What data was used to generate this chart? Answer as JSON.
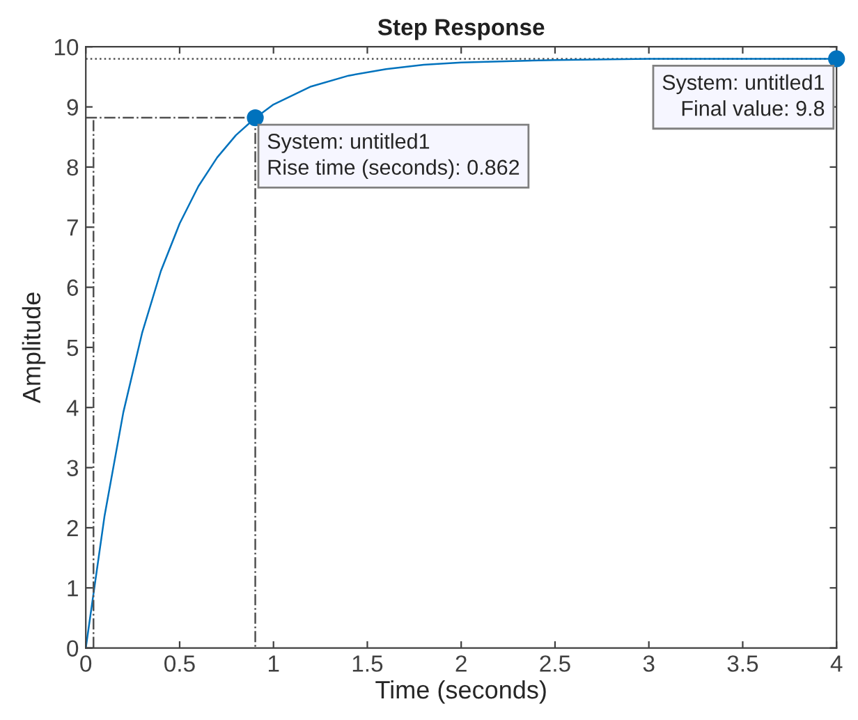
{
  "chart_data": {
    "type": "line",
    "title": "Step Response",
    "xlabel": "Time (seconds)",
    "ylabel": "Amplitude",
    "xlim": [
      0,
      4
    ],
    "xticks": [
      0,
      0.5,
      1,
      1.5,
      2,
      2.5,
      3,
      3.5,
      4
    ],
    "ylim": [
      0,
      10
    ],
    "yticks": [
      0,
      1,
      2,
      3,
      4,
      5,
      6,
      7,
      8,
      9,
      10
    ],
    "grid": false,
    "series": [
      {
        "color": "#0072bd",
        "x": [
          0,
          0.1,
          0.2,
          0.3,
          0.4,
          0.5,
          0.6,
          0.7,
          0.8,
          0.9,
          1.0,
          1.2,
          1.4,
          1.6,
          1.8,
          2.0,
          2.5,
          3.0,
          3.5,
          4.0
        ],
        "values": [
          0,
          2.2,
          3.92,
          5.24,
          6.27,
          7.06,
          7.68,
          8.16,
          8.53,
          8.81,
          9.04,
          9.34,
          9.52,
          9.63,
          9.7,
          9.74,
          9.78,
          9.8,
          9.8,
          9.8
        ]
      },
      {
        "color": "#505050",
        "line_style": "dashdot",
        "x": [
          0,
          0.903,
          0.903
        ],
        "values": [
          8.82,
          8.82,
          0
        ]
      },
      {
        "color": "#505050",
        "line_style": "dashdot",
        "x": [
          0.041,
          0.041
        ],
        "values": [
          0,
          8.82
        ]
      },
      {
        "type": "scatter",
        "color": "#0072bd",
        "marker": "circle",
        "x": [
          0.903,
          4
        ],
        "values": [
          8.82,
          9.8
        ]
      }
    ],
    "ref_lines": [
      {
        "axis": "y",
        "value": 9.8,
        "color": "#505050",
        "line_style": "dotted"
      }
    ],
    "annotations": [
      {
        "text": "System: untitled1\nRise time (seconds): 0.862",
        "x": 0.903,
        "y": 8.82
      },
      {
        "text": "System: untitled1\nFinal value: 9.8",
        "x": 4,
        "y": 9.8
      }
    ]
  }
}
